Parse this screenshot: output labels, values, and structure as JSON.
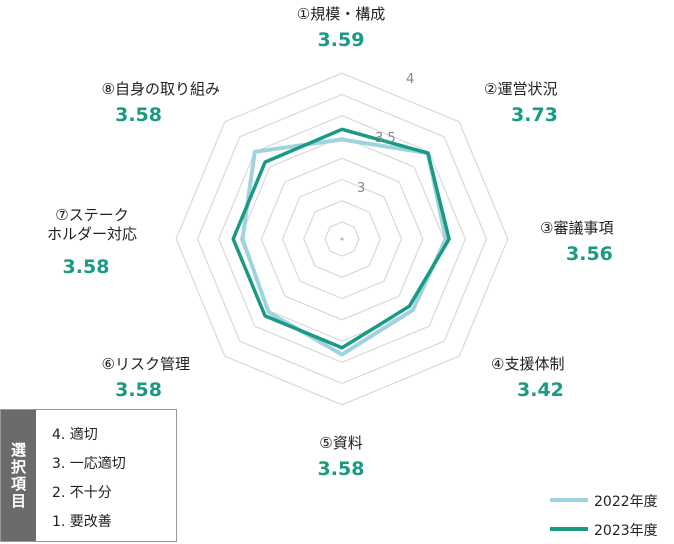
{
  "chart_data": {
    "type": "radar",
    "axes": [
      {
        "label": "①規模・構成",
        "value_label": "3.59"
      },
      {
        "label": "②運営状況",
        "value_label": "3.73"
      },
      {
        "label": "③審議事項",
        "value_label": "3.56"
      },
      {
        "label": "④支援体制",
        "value_label": "3.42"
      },
      {
        "label": "⑤資料",
        "value_label": "3.58"
      },
      {
        "label": "⑥リスク管理",
        "value_label": "3.58"
      },
      {
        "label": "⑦ステーク\nホルダー対応",
        "value_label": "3.58"
      },
      {
        "label": "⑧自身の取り組み",
        "value_label": "3.58"
      }
    ],
    "ticks": [
      3,
      3.5,
      4
    ],
    "tick_labels": [
      "3",
      "3.5",
      "4"
    ],
    "r_range": [
      2.3,
      4.3
    ],
    "grid": true,
    "series": [
      {
        "name": "2022年度",
        "color": "#9fd3e0",
        "values": [
          3.47,
          3.73,
          3.52,
          3.48,
          3.66,
          3.52,
          3.47,
          3.75
        ]
      },
      {
        "name": "2023年度",
        "color": "#1a9a82",
        "values": [
          3.59,
          3.73,
          3.56,
          3.42,
          3.58,
          3.58,
          3.58,
          3.58
        ]
      }
    ],
    "legend": "bottom-right"
  },
  "options_legend": {
    "title": "選択項目",
    "items": [
      "4. 適切",
      "3. 一応適切",
      "2. 不十分",
      "1. 要改善"
    ]
  },
  "colors": {
    "grid": "#d9d9d9",
    "accent": "#1a9a82",
    "light": "#9fd3e0"
  }
}
